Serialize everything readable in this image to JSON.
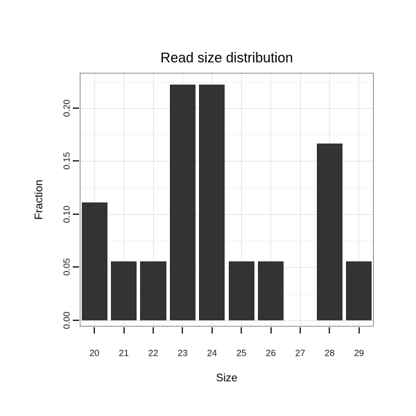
{
  "figure": {
    "background": "#ffffff"
  },
  "chart_data": {
    "type": "bar",
    "title": "Read size distribution",
    "xlabel": "Size",
    "ylabel": "Fraction",
    "categories": [
      "20",
      "21",
      "22",
      "23",
      "24",
      "25",
      "26",
      "27",
      "28",
      "29"
    ],
    "values": [
      0.1111,
      0.0556,
      0.0556,
      0.2222,
      0.2222,
      0.0556,
      0.0556,
      0,
      0.1667,
      0.0556
    ],
    "yticks": [
      0,
      0.05,
      0.1,
      0.15,
      0.2
    ],
    "ytick_labels": [
      "0.00",
      "0.05",
      "0.10",
      "0.15",
      "0.20"
    ],
    "yticks_minor": [
      0.025,
      0.075,
      0.125,
      0.175,
      0.225
    ],
    "ylim": [
      -0.006,
      0.2333
    ],
    "bar_color": "#333333",
    "panel_border_color": "#7f7f7f",
    "grid": true,
    "grid_major_color": "#e3e3e3",
    "grid_minor_color": "#f2f2f2",
    "legend": "none"
  }
}
